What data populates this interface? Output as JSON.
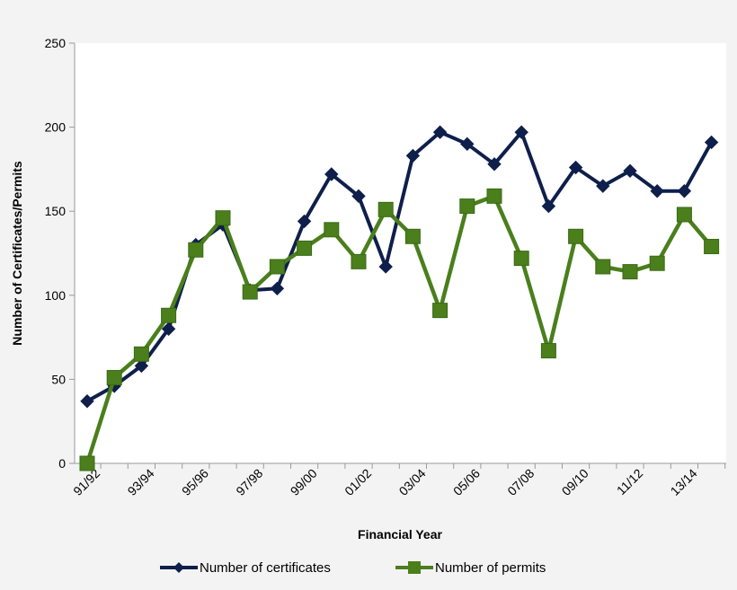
{
  "chart_data": {
    "type": "line",
    "title": "",
    "xlabel": "Financial Year",
    "ylabel": "Number of Certificates/Permits",
    "ylim": [
      0,
      250
    ],
    "yticks": [
      0,
      50,
      100,
      150,
      200,
      250
    ],
    "x": [
      "91/92",
      "92/93",
      "93/94",
      "94/95",
      "95/96",
      "96/97",
      "97/98",
      "98/99",
      "99/00",
      "00/01",
      "01/02",
      "02/03",
      "03/04",
      "04/05",
      "05/06",
      "06/07",
      "07/08",
      "08/09",
      "09/10",
      "10/11",
      "11/12",
      "12/13",
      "13/14",
      "14/15"
    ],
    "xtick_labels": [
      "91/92",
      "93/94",
      "95/96",
      "97/98",
      "99/00",
      "01/02",
      "03/04",
      "05/06",
      "07/08",
      "09/10",
      "11/12",
      "13/14"
    ],
    "grid": false,
    "legend_position": "bottom",
    "series": [
      {
        "name": "Number of certificates",
        "color": "#0f1f4b",
        "marker": "diamond",
        "values": [
          37,
          46,
          58,
          80,
          130,
          142,
          103,
          104,
          144,
          172,
          159,
          117,
          183,
          197,
          190,
          178,
          197,
          153,
          176,
          165,
          174,
          162,
          162,
          191
        ]
      },
      {
        "name": "Number of permits",
        "color": "#4a7f1c",
        "marker": "square",
        "values": [
          0,
          51,
          65,
          88,
          127,
          146,
          102,
          117,
          128,
          139,
          120,
          151,
          135,
          91,
          153,
          159,
          122,
          67,
          135,
          117,
          114,
          119,
          148,
          129
        ]
      }
    ]
  }
}
